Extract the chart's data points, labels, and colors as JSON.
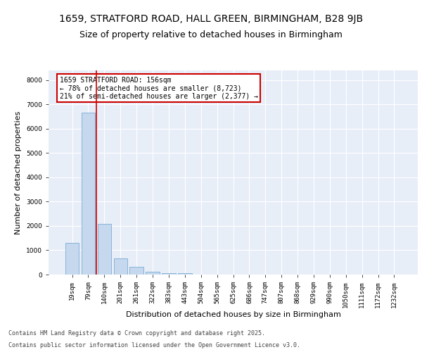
{
  "title_line1": "1659, STRATFORD ROAD, HALL GREEN, BIRMINGHAM, B28 9JB",
  "title_line2": "Size of property relative to detached houses in Birmingham",
  "xlabel": "Distribution of detached houses by size in Birmingham",
  "ylabel": "Number of detached properties",
  "categories": [
    "19sqm",
    "79sqm",
    "140sqm",
    "201sqm",
    "261sqm",
    "322sqm",
    "383sqm",
    "443sqm",
    "504sqm",
    "565sqm",
    "625sqm",
    "686sqm",
    "747sqm",
    "807sqm",
    "868sqm",
    "929sqm",
    "990sqm",
    "1050sqm",
    "1111sqm",
    "1172sqm",
    "1232sqm"
  ],
  "values": [
    1300,
    6650,
    2100,
    670,
    310,
    110,
    70,
    50,
    0,
    0,
    0,
    0,
    0,
    0,
    0,
    0,
    0,
    0,
    0,
    0,
    0
  ],
  "bar_color": "#c5d8ee",
  "bar_edge_color": "#7aadd4",
  "vline_color": "#cc0000",
  "annotation_text": "1659 STRATFORD ROAD: 156sqm\n← 78% of detached houses are smaller (8,723)\n21% of semi-detached houses are larger (2,377) →",
  "annotation_box_color": "#ffffff",
  "annotation_box_edge": "#cc0000",
  "ylim": [
    0,
    8400
  ],
  "yticks": [
    0,
    1000,
    2000,
    3000,
    4000,
    5000,
    6000,
    7000,
    8000
  ],
  "background_color": "#e8eef8",
  "grid_color": "#ffffff",
  "footer_line1": "Contains HM Land Registry data © Crown copyright and database right 2025.",
  "footer_line2": "Contains public sector information licensed under the Open Government Licence v3.0.",
  "title_fontsize": 10,
  "subtitle_fontsize": 9,
  "tick_fontsize": 6.5,
  "ylabel_fontsize": 8,
  "xlabel_fontsize": 8,
  "footer_fontsize": 6,
  "annotation_fontsize": 7
}
